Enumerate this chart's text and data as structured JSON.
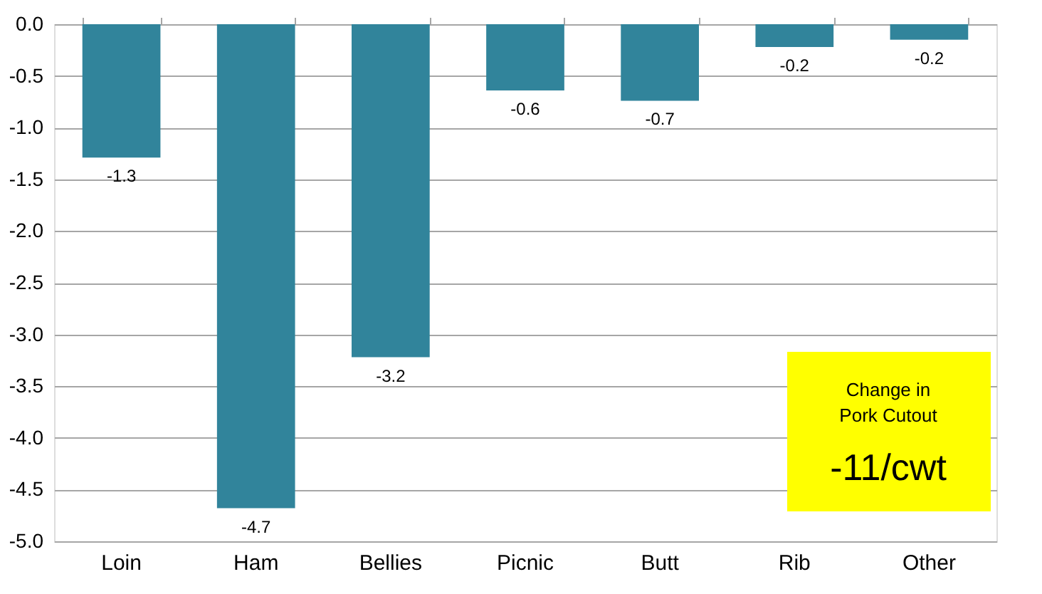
{
  "chart_data": {
    "type": "bar",
    "categories": [
      "Loin",
      "Ham",
      "Bellies",
      "Picnic",
      "Butt",
      "Rib",
      "Other"
    ],
    "series": [
      {
        "color": "#31849b",
        "values": [
          -1.29,
          -4.68,
          -3.22,
          -0.64,
          -0.74,
          -0.22,
          -0.15
        ],
        "value_labels": [
          "-1.3",
          "-4.7",
          "-3.2",
          "-0.6",
          "-0.7",
          "-0.2",
          "-0.2"
        ]
      }
    ],
    "ylim": [
      -5,
      0
    ],
    "yticks": [
      {
        "value": 0,
        "label": "0.0"
      },
      -0.5,
      {
        "value": -1,
        "label": "-1.0"
      },
      -1.5,
      {
        "value": -2,
        "label": "-2.0"
      },
      -2.5,
      {
        "value": -3,
        "label": "-3.0"
      },
      -3.5,
      {
        "value": -4,
        "label": "-4.0"
      },
      -4.5,
      {
        "value": -5,
        "label": "-5.0"
      }
    ],
    "grid": "y",
    "legend": false,
    "annotations": [
      "Change in Pork Cutout",
      "-11/cwt"
    ]
  }
}
